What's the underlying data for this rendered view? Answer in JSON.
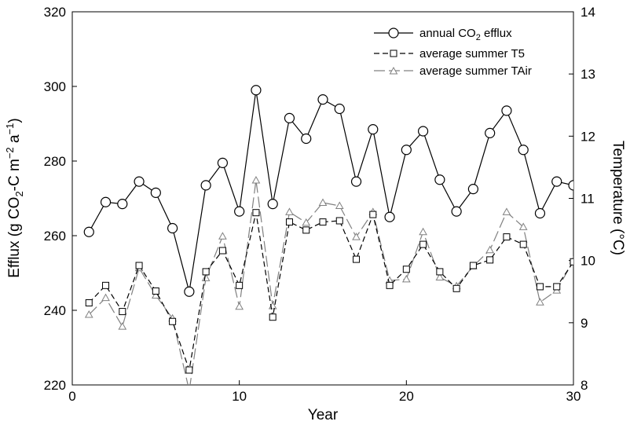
{
  "chart_data": {
    "type": "line",
    "xlabel": "Year",
    "ylabel_left": "Efflux (g CO2-C m-2 a-1)",
    "ylabel_right": "Temperature (°C)",
    "xlim": [
      0,
      30
    ],
    "ylim_left": [
      220,
      320
    ],
    "ylim_right": [
      8,
      14
    ],
    "xticks": [
      "0",
      "10",
      "20",
      "30"
    ],
    "yticks_left": [
      "220",
      "240",
      "260",
      "280",
      "300",
      "320"
    ],
    "yticks_right": [
      "8",
      "9",
      "10",
      "11",
      "12",
      "13",
      "14"
    ],
    "grid": false,
    "legend_position": "top-right",
    "x": [
      1,
      2,
      3,
      4,
      5,
      6,
      7,
      8,
      9,
      10,
      11,
      12,
      13,
      14,
      15,
      16,
      17,
      18,
      19,
      20,
      21,
      22,
      23,
      24,
      25,
      26,
      27,
      28,
      29,
      30
    ],
    "series": [
      {
        "name": "annual CO2 efflux",
        "axis": "left",
        "marker": "circle",
        "line_style": "solid",
        "color": "#000000",
        "values": [
          261,
          269,
          268.5,
          274.5,
          271.5,
          262,
          245,
          273.5,
          279.5,
          266.5,
          299,
          268.5,
          291.5,
          286,
          296.5,
          294,
          274.5,
          288.5,
          265,
          283,
          288,
          275,
          266.5,
          272.5,
          287.5,
          293.5,
          283,
          266,
          274.5,
          273.5
        ]
      },
      {
        "name": "average summer T5",
        "axis": "right",
        "marker": "square",
        "line_style": "dashed",
        "color": "#000000",
        "values": [
          9.32,
          9.6,
          9.18,
          9.92,
          9.51,
          9.02,
          8.24,
          9.82,
          10.16,
          9.6,
          10.77,
          9.09,
          10.62,
          10.49,
          10.62,
          10.64,
          10.02,
          10.74,
          9.6,
          9.86,
          10.26,
          9.82,
          9.55,
          9.92,
          10.01,
          10.38,
          10.26,
          9.58,
          9.58,
          9.98
        ]
      },
      {
        "name": "average summer TAir",
        "axis": "right",
        "marker": "triangle",
        "line_style": "long-dash",
        "color": "#808080",
        "values": [
          9.13,
          9.4,
          8.94,
          9.88,
          9.44,
          9.07,
          7.91,
          9.72,
          10.39,
          9.26,
          11.29,
          9.27,
          10.78,
          10.61,
          10.93,
          10.88,
          10.38,
          10.78,
          9.68,
          9.7,
          10.46,
          9.73,
          9.59,
          9.91,
          10.17,
          10.78,
          10.54,
          9.33,
          9.52,
          10.0
        ]
      }
    ]
  },
  "labels": {
    "xlabel": "Year",
    "ylabel_left_pre": "Efflux (g CO",
    "ylabel_left_sub": "2",
    "ylabel_left_mid": "-C m",
    "ylabel_left_sup1": "−2",
    "ylabel_left_mid2": " a",
    "ylabel_left_sup2": "−1",
    "ylabel_left_post": ")",
    "ylabel_right": "Temperature (°C)",
    "legend_co2_pre": "annual CO",
    "legend_co2_sub": "2",
    "legend_co2_post": " efflux",
    "legend_t5": "average summer T5",
    "legend_tair": "average summer TAir"
  }
}
